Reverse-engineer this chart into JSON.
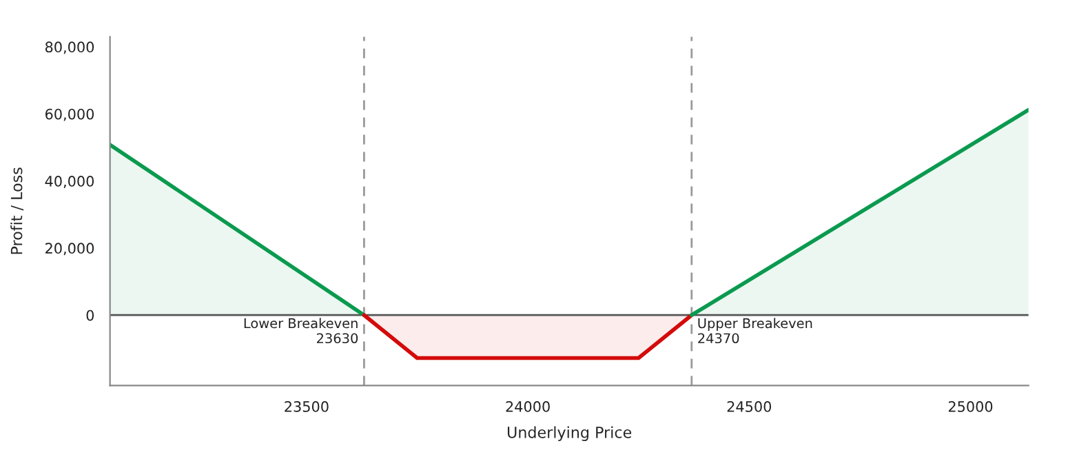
{
  "chart_data": {
    "type": "area",
    "xlabel": "Underlying Price",
    "ylabel": "Profit / Loss",
    "series": [
      {
        "color": "#0a9a4f",
        "x": [
          23056,
          23630
        ],
        "values": [
          50800,
          0
        ]
      },
      {
        "color": "#d40b0b",
        "x": [
          23630,
          23750,
          24250,
          24370
        ],
        "values": [
          0,
          -12800,
          -12800,
          0
        ]
      },
      {
        "color": "#0a9a4f",
        "x": [
          24370,
          25131
        ],
        "values": [
          0,
          61200
        ]
      }
    ],
    "xlim": [
      23056,
      25131
    ],
    "ylim": [
      -21000,
      83000
    ],
    "xticks": [
      23500,
      24000,
      24500,
      25000
    ],
    "yticks": [
      {
        "value": 0,
        "label": "0"
      },
      {
        "value": 20000,
        "label": "20,000"
      },
      {
        "value": 40000,
        "label": "40,000"
      },
      {
        "value": 60000,
        "label": "60,000"
      },
      {
        "value": 80000,
        "label": "80,000"
      }
    ],
    "ref_lines": [
      {
        "axis": "y",
        "value": 0,
        "color": "#555555",
        "line_style": "solid"
      },
      {
        "axis": "x",
        "value": 23630,
        "label": "Lower Breakeven\n23630",
        "color": "#999999",
        "line_style": "dashed"
      },
      {
        "axis": "x",
        "value": 24370,
        "label": "Upper Breakeven\n24370",
        "color": "#999999",
        "line_style": "dashed"
      }
    ],
    "grid": false,
    "legend": false
  }
}
